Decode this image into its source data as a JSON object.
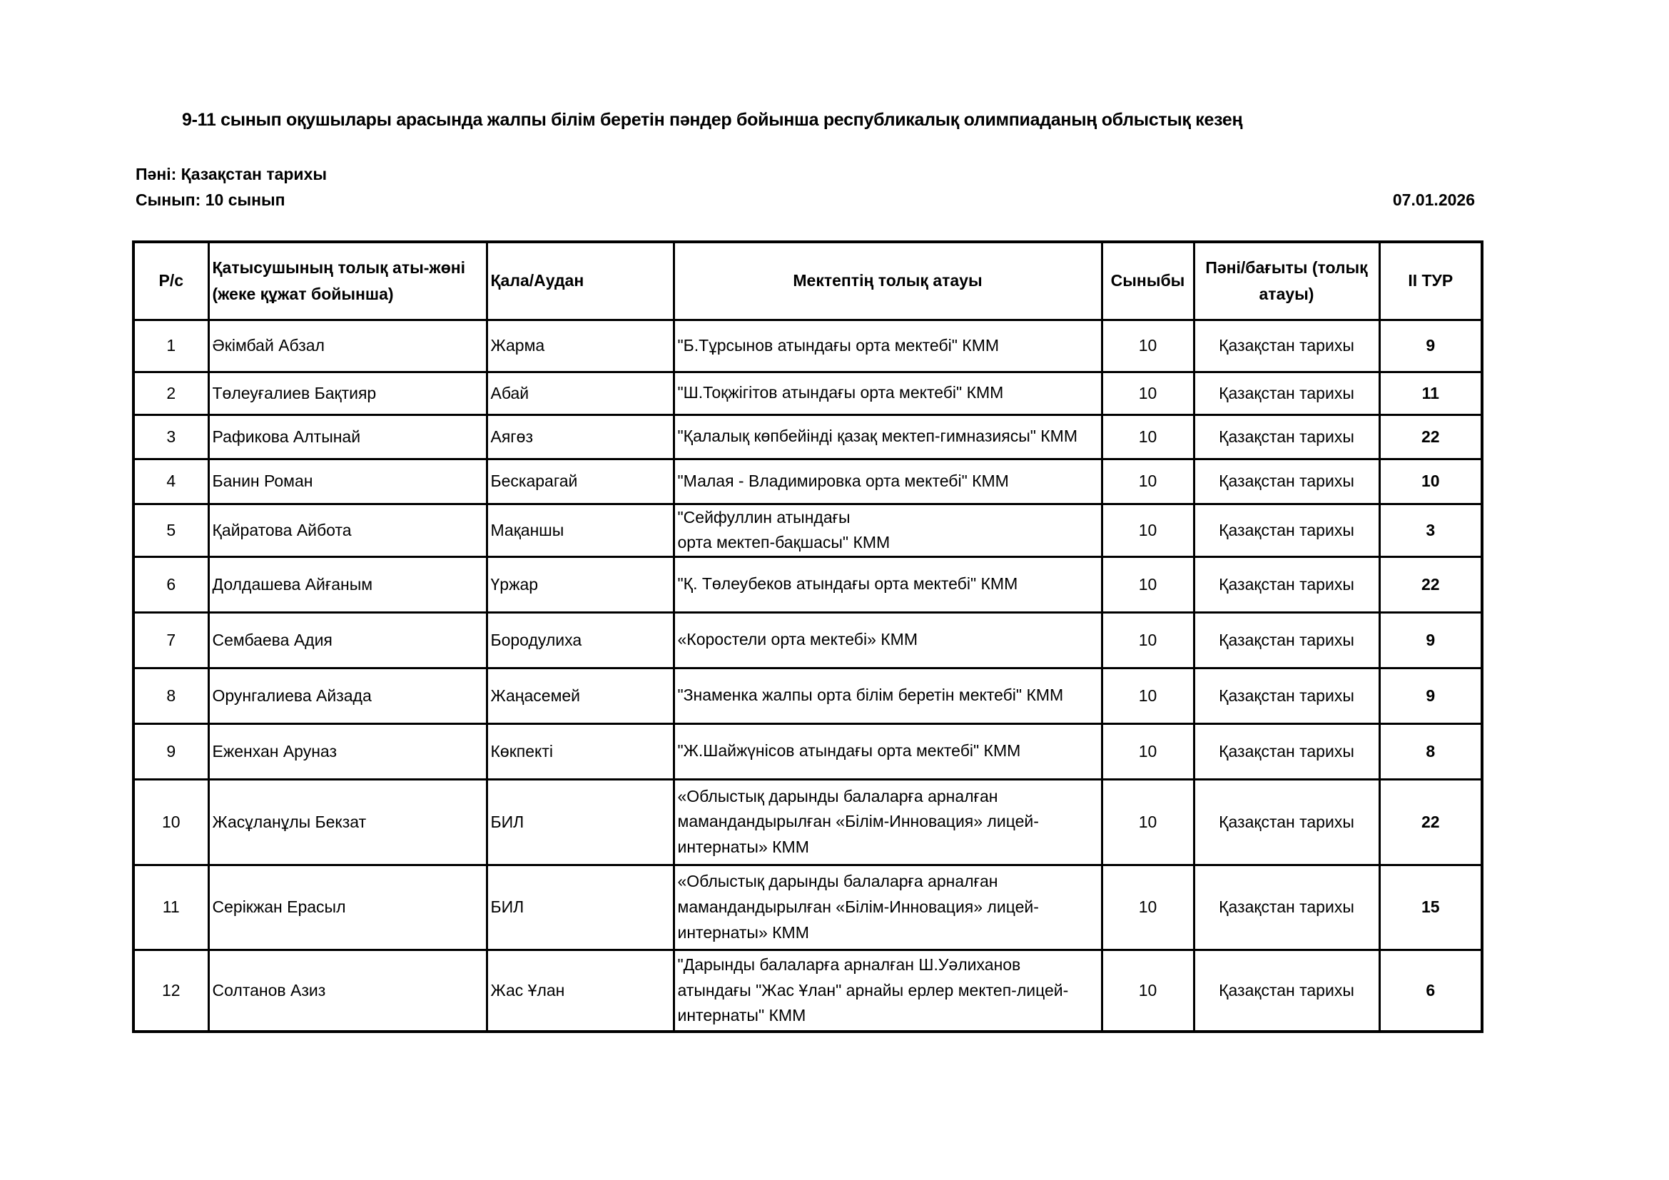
{
  "title": "9-11 сынып оқушылары арасында жалпы білім беретін пәндер бойынша республикалық олимпиаданың облыстық кезең",
  "subject_line": "Пәні: Қазақстан тарихы",
  "class_line": "Сынып: 10 сынып",
  "date": "07.01.2026",
  "table": {
    "headers": [
      "Р/с",
      "Қатысушының толық аты-жөні (жеке құжат бойынша)",
      "Қала/Аудан",
      "Мектептің толық атауы",
      "Сыныбы",
      "Пәні/бағыты (толық атауы)",
      "ІІ ТУР"
    ],
    "rows": [
      {
        "n": "1",
        "name": "Әкімбай Абзал",
        "city": "Жарма",
        "school": "\"Б.Тұрсынов атындағы орта мектебі\" КММ",
        "grade": "10",
        "subject": "Қазақстан тарихы",
        "score": "9"
      },
      {
        "n": "2",
        "name": "Төлеуғалиев Бақтияр",
        "city": "Абай",
        "school": "\"Ш.Тоқжігітов атындағы орта мектебі\" КММ",
        "grade": "10",
        "subject": "Қазақстан тарихы",
        "score": "11"
      },
      {
        "n": "3",
        "name": "Рафикова Алтынай",
        "city": "Аягөз",
        "school": "\"Қалалық көпбейінді қазақ мектеп-гимназиясы\" КММ",
        "grade": "10",
        "subject": "Қазақстан тарихы",
        "score": "22"
      },
      {
        "n": "4",
        "name": "Банин Роман",
        "city": "Бескарагай",
        "school": "\"Малая - Владимировка орта мектебі\" КММ",
        "grade": "10",
        "subject": "Қазақстан тарихы",
        "score": "10"
      },
      {
        "n": "5",
        "name": "Қайратова Айбота",
        "city": "Мақаншы",
        "school": "\"Сейфуллин атындағы\n орта мектеп-бақшасы\" КММ",
        "grade": "10",
        "subject": "Қазақстан тарихы",
        "score": "3"
      },
      {
        "n": "6",
        "name": "Долдашева Айғаным",
        "city": "Үржар",
        "school": "\"Қ. Төлеубеков атындағы орта мектебі\" КММ",
        "grade": "10",
        "subject": "Қазақстан тарихы",
        "score": "22"
      },
      {
        "n": "7",
        "name": "Сембаева Адия",
        "city": "Бородулиха",
        "school": " «Коростели орта мектебі» КММ",
        "grade": "10",
        "subject": "Қазақстан тарихы",
        "score": "9"
      },
      {
        "n": "8",
        "name": "Орунгалиева Айзада",
        "city": "Жаңасемей",
        "school": "\"Знаменка жалпы орта білім беретін мектебі\" КММ",
        "grade": "10",
        "subject": "Қазақстан тарихы",
        "score": "9"
      },
      {
        "n": "9",
        "name": "Еженхан Аруназ",
        "city": "Көкпекті",
        "school": "\"Ж.Шайжүнісов атындағы орта мектебі\" КММ",
        "grade": "10",
        "subject": "Қазақстан тарихы",
        "score": "8"
      },
      {
        "n": "10",
        "name": "Жасұланұлы Бекзат",
        "city": "БИЛ",
        "school": "«Облыстық дарынды балаларға арналған мамандандырылған «Білім-Инновация» лицей-интернаты» КММ",
        "grade": "10",
        "subject": "Қазақстан тарихы",
        "score": "22"
      },
      {
        "n": "11",
        "name": "Серікжан Ерасыл",
        "city": "БИЛ",
        "school": "«Облыстық дарынды балаларға арналған мамандандырылған «Білім-Инновация» лицей-интернаты» КММ",
        "grade": "10",
        "subject": "Қазақстан тарихы",
        "score": "15"
      },
      {
        "n": "12",
        "name": "Солтанов Азиз",
        "city": "Жас Ұлан",
        "school": "\"Дарынды балаларға арналған Ш.Уәлиханов атындағы \"Жас Ұлан\" арнайы ерлер мектеп-лицей-интернаты\" КММ",
        "grade": "10",
        "subject": "Қазақстан тарихы",
        "score": "6"
      }
    ]
  }
}
